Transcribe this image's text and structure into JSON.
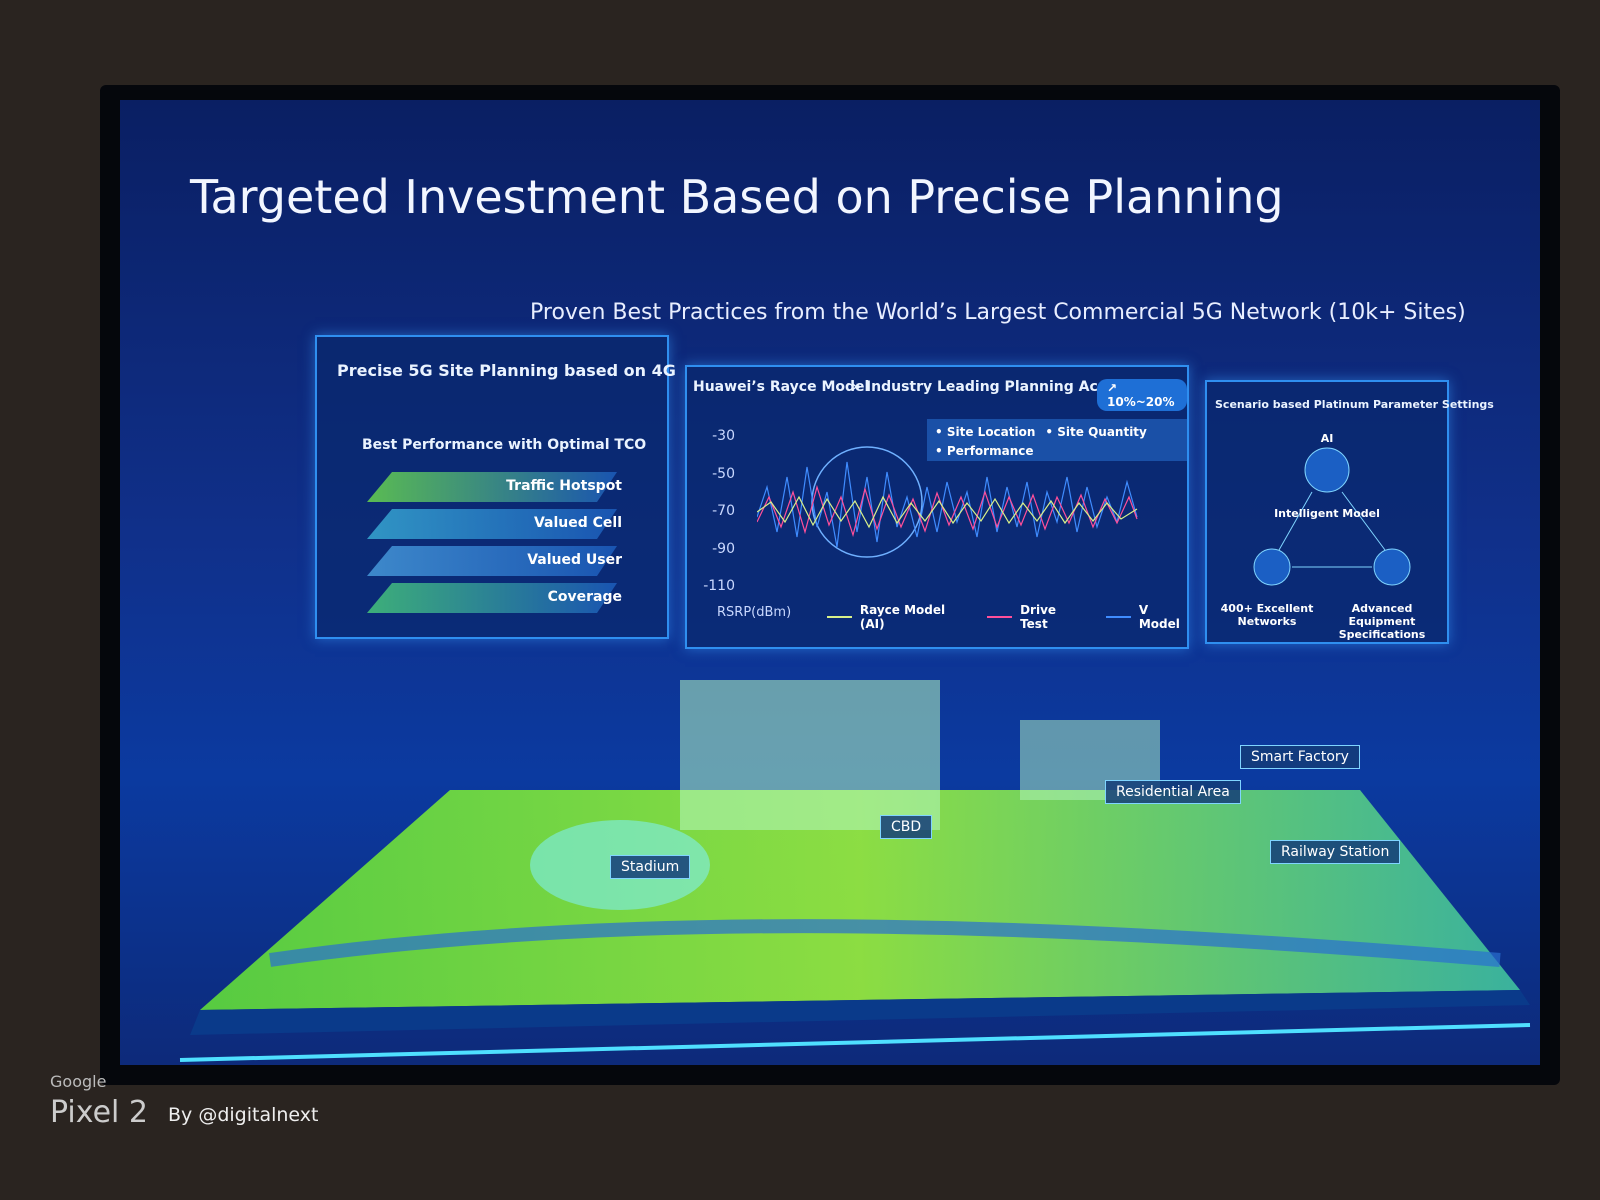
{
  "slide": {
    "title": "Targeted Investment Based on Precise Planning",
    "subtitle": "Proven Best Practices from the World’s Largest Commercial 5G Network (10k+ Sites)"
  },
  "panel_planning": {
    "title": "Precise 5G Site Planning based on 4G",
    "heading": "Best Performance with Optimal TCO",
    "layers": [
      "Traffic Hotspot",
      "Valued Cell",
      "Valued User",
      "Coverage"
    ]
  },
  "panel_model": {
    "title": "Huawei’s Rayce Model",
    "claim": "Industry Leading Planning Accuracy",
    "badge": "10%~20%",
    "tags": [
      "Site Location",
      "Site Quantity",
      "Performance"
    ],
    "yticks": [
      -30,
      -50,
      -70,
      -90,
      -110
    ],
    "ylabel": "RSRP(dBm)",
    "legend": [
      {
        "name": "Rayce Model (AI)",
        "color": "#d8f08a"
      },
      {
        "name": "Drive Test",
        "color": "#ff4f9a"
      },
      {
        "name": "V Model",
        "color": "#3f8cff"
      }
    ]
  },
  "panel_params": {
    "title": "Scenario based Platinum Parameter Settings",
    "nodes": [
      "AI",
      "Intelligent Model",
      "400+ Excellent Networks",
      "Advanced Equipment Specifications"
    ]
  },
  "map": {
    "labels": [
      "Stadium",
      "CBD",
      "Residential Area",
      "Smart Factory",
      "Railway Station"
    ]
  },
  "watermark": {
    "brand": "Google",
    "device": "Pixel 2",
    "credit": "By @digitalnext"
  }
}
